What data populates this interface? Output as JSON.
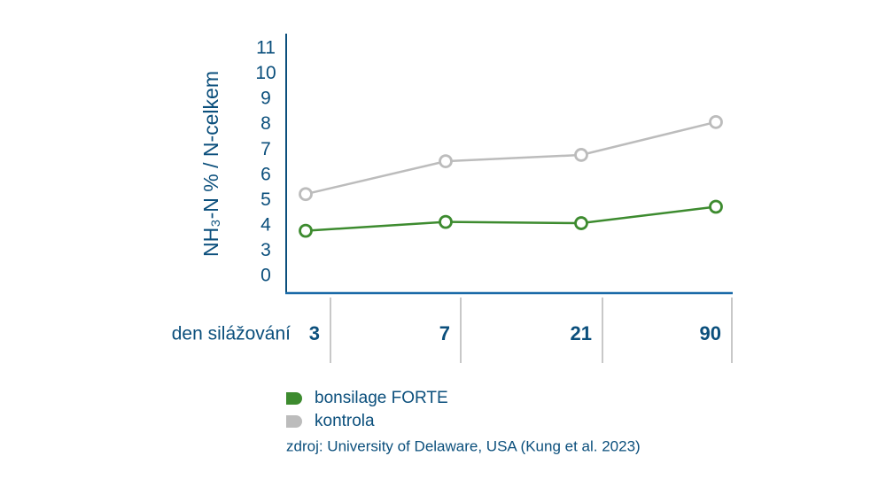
{
  "chart_data": {
    "type": "line",
    "y_label": "NH₃-N % / N-celkem",
    "x_label": "den silážování",
    "categories": [
      "3",
      "7",
      "21",
      "90"
    ],
    "series": [
      {
        "name": "bonsilage FORTE",
        "color": "#3d8b2f",
        "values": [
          3.8,
          4.15,
          4.1,
          4.75
        ]
      },
      {
        "name": "kontrola",
        "color": "#bcbcbc",
        "values": [
          5.25,
          6.55,
          6.8,
          8.1
        ]
      }
    ],
    "ylim": [
      0,
      11
    ],
    "yticks": [
      0,
      3,
      4,
      5,
      6,
      7,
      8,
      9,
      10,
      11
    ],
    "source": "zdroj: University of Delaware, USA (Kung et al. 2023)"
  }
}
